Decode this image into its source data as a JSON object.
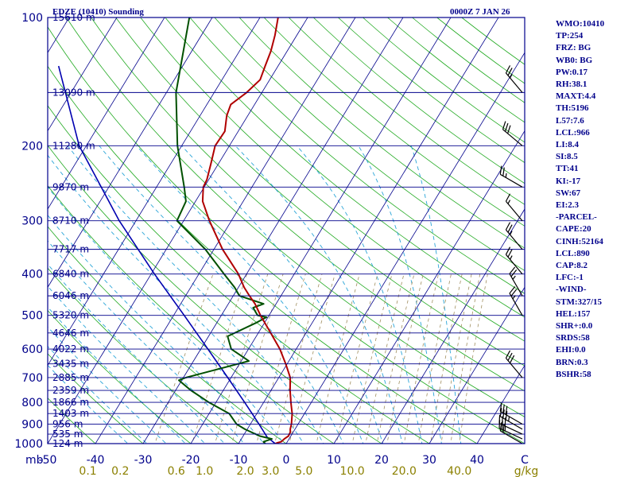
{
  "header": {
    "title_left": "EDZE (10410) Sounding",
    "title_right": "0000Z  7 JAN 26"
  },
  "indices": [
    "WMO:10410",
    "TP:254",
    "FRZ: BG",
    "WB0: BG",
    "PW:0.17",
    "RH:38.1",
    "MAXT:4.4",
    "TH:5196",
    "L57:7.6",
    "LCL:966",
    "LI:8.4",
    "SI:8.5",
    "TT:41",
    "KI:-17",
    "SW:67",
    "EI:2.3",
    "-PARCEL-",
    "CAPE:20",
    "CINH:52164",
    "LCL:890",
    "CAP:8.2",
    "LFC:-1",
    "-WIND-",
    "STM:327/15",
    "HEL:157",
    "SHR+:0.0",
    "SRDS:58",
    "EHI:0.0",
    "BRN:0.3",
    "BSHR:58"
  ],
  "colors": {
    "frame": "#00008b",
    "isobar": "#00008b",
    "isotherm": "#00008b",
    "dry_adiabat": "#22aa22",
    "moist_adiabat": "#2aa5d8",
    "mixing_ratio": "#a08f60",
    "temperature": "#b00000",
    "dewpoint": "#005000",
    "parcel": "#0000b0",
    "wind": "#000000",
    "mixing_label": "#8b8000"
  },
  "chart_data": {
    "type": "skew-t log-p sounding",
    "title": "EDZE (10410) Sounding",
    "valid_time": "0000Z  7 JAN 26",
    "pressure_axis_label": "mb",
    "pressure_range_hpa": [
      100,
      1000
    ],
    "temperature_range_c": [
      -50,
      50
    ],
    "pressure_levels": [
      {
        "p": 100,
        "label": "100",
        "height_label": "15610 m"
      },
      {
        "p": 150,
        "label": "",
        "height_label": "13090 m"
      },
      {
        "p": 200,
        "label": "200",
        "height_label": "11280 m"
      },
      {
        "p": 250,
        "label": "",
        "height_label": "9870 m"
      },
      {
        "p": 300,
        "label": "300",
        "height_label": "8710 m"
      },
      {
        "p": 350,
        "label": "",
        "height_label": "7717 m"
      },
      {
        "p": 400,
        "label": "400",
        "height_label": "6840 m"
      },
      {
        "p": 450,
        "label": "",
        "height_label": "6046 m"
      },
      {
        "p": 500,
        "label": "500",
        "height_label": "5320 m"
      },
      {
        "p": 550,
        "label": "",
        "height_label": "4646 m"
      },
      {
        "p": 600,
        "label": "600",
        "height_label": "4022 m"
      },
      {
        "p": 650,
        "label": "",
        "height_label": "3435 m"
      },
      {
        "p": 700,
        "label": "700",
        "height_label": "2885 m"
      },
      {
        "p": 750,
        "label": "",
        "height_label": "2359 m"
      },
      {
        "p": 800,
        "label": "800",
        "height_label": "1866 m"
      },
      {
        "p": 850,
        "label": "",
        "height_label": "1403 m"
      },
      {
        "p": 900,
        "label": "900",
        "height_label": "956 m"
      },
      {
        "p": 950,
        "label": "",
        "height_label": "535 m"
      },
      {
        "p": 1000,
        "label": "1000",
        "height_label": "124 m"
      }
    ],
    "temperature_ticks": [
      {
        "t": -50,
        "label": "-50"
      },
      {
        "t": -40,
        "label": "-40"
      },
      {
        "t": -30,
        "label": "-30"
      },
      {
        "t": -20,
        "label": "-20"
      },
      {
        "t": -10,
        "label": "-10"
      },
      {
        "t": 0,
        "label": "0"
      },
      {
        "t": 10,
        "label": "10"
      },
      {
        "t": 20,
        "label": "20"
      },
      {
        "t": 30,
        "label": "30"
      },
      {
        "t": 40,
        "label": "40"
      },
      {
        "t": 50,
        "label": "C"
      }
    ],
    "mixing_ratio_ticks": [
      {
        "w": 0.1,
        "label": "0.1"
      },
      {
        "w": 0.2,
        "label": "0.2"
      },
      {
        "w": 0.6,
        "label": "0.6"
      },
      {
        "w": 1.0,
        "label": "1.0"
      },
      {
        "w": 2.0,
        "label": "2.0"
      },
      {
        "w": 3.0,
        "label": "3.0"
      },
      {
        "w": 5.0,
        "label": "5.0"
      },
      {
        "w": 10.0,
        "label": "10.0"
      },
      {
        "w": 20.0,
        "label": "20.0"
      },
      {
        "w": 40.0,
        "label": "40.0"
      }
    ],
    "mixing_ratio_unit": "g/kg",
    "temperature_profile": [
      {
        "p": 1000,
        "t": -2.3
      },
      {
        "p": 995,
        "t": -1.9
      },
      {
        "p": 990,
        "t": -1.3
      },
      {
        "p": 975,
        "t": -1.0
      },
      {
        "p": 960,
        "t": -0.5
      },
      {
        "p": 940,
        "t": -0.6
      },
      {
        "p": 925,
        "t": -1.0
      },
      {
        "p": 900,
        "t": -1.4
      },
      {
        "p": 850,
        "t": -2.6
      },
      {
        "p": 800,
        "t": -4.3
      },
      {
        "p": 750,
        "t": -6.0
      },
      {
        "p": 700,
        "t": -7.6
      },
      {
        "p": 650,
        "t": -10.3
      },
      {
        "p": 600,
        "t": -13.4
      },
      {
        "p": 550,
        "t": -17.4
      },
      {
        "p": 500,
        "t": -21.8
      },
      {
        "p": 470,
        "t": -24.4
      },
      {
        "p": 450,
        "t": -26.6
      },
      {
        "p": 430,
        "t": -28.8
      },
      {
        "p": 400,
        "t": -31.7
      },
      {
        "p": 350,
        "t": -38.2
      },
      {
        "p": 300,
        "t": -44.6
      },
      {
        "p": 270,
        "t": -48.5
      },
      {
        "p": 250,
        "t": -50.2
      },
      {
        "p": 240,
        "t": -50.4
      },
      {
        "p": 220,
        "t": -51.6
      },
      {
        "p": 200,
        "t": -53.0
      },
      {
        "p": 185,
        "t": -52.8
      },
      {
        "p": 170,
        "t": -54.4
      },
      {
        "p": 160,
        "t": -55.0
      },
      {
        "p": 150,
        "t": -53.2
      },
      {
        "p": 140,
        "t": -52.0
      },
      {
        "p": 130,
        "t": -52.7
      },
      {
        "p": 120,
        "t": -53.4
      },
      {
        "p": 110,
        "t": -54.6
      },
      {
        "p": 100,
        "t": -56.2
      }
    ],
    "dewpoint_profile": [
      {
        "p": 1000,
        "t": -4.4
      },
      {
        "p": 990,
        "t": -5.0
      },
      {
        "p": 975,
        "t": -3.6
      },
      {
        "p": 960,
        "t": -6.5
      },
      {
        "p": 925,
        "t": -10.5
      },
      {
        "p": 900,
        "t": -12.9
      },
      {
        "p": 850,
        "t": -15.8
      },
      {
        "p": 800,
        "t": -21.5
      },
      {
        "p": 750,
        "t": -26.8
      },
      {
        "p": 710,
        "t": -30.6
      },
      {
        "p": 700,
        "t": -29.5
      },
      {
        "p": 640,
        "t": -18.4
      },
      {
        "p": 600,
        "t": -23.6
      },
      {
        "p": 560,
        "t": -26.0
      },
      {
        "p": 520,
        "t": -21.7
      },
      {
        "p": 505,
        "t": -20.3
      },
      {
        "p": 500,
        "t": -22.4
      },
      {
        "p": 480,
        "t": -24.3
      },
      {
        "p": 470,
        "t": -22.6
      },
      {
        "p": 450,
        "t": -28.7
      },
      {
        "p": 430,
        "t": -30.8
      },
      {
        "p": 400,
        "t": -34.7
      },
      {
        "p": 350,
        "t": -41.8
      },
      {
        "p": 300,
        "t": -51.4
      },
      {
        "p": 270,
        "t": -52.0
      },
      {
        "p": 250,
        "t": -54.2
      },
      {
        "p": 200,
        "t": -60.9
      },
      {
        "p": 150,
        "t": -68.0
      },
      {
        "p": 100,
        "t": -74.8
      }
    ],
    "parcel_profile": [
      {
        "p": 1000,
        "t": -2.3
      },
      {
        "p": 966,
        "t": -4.8
      },
      {
        "p": 900,
        "t": -8.2
      },
      {
        "p": 850,
        "t": -11.0
      },
      {
        "p": 800,
        "t": -14.0
      },
      {
        "p": 700,
        "t": -20.7
      },
      {
        "p": 600,
        "t": -28.5
      },
      {
        "p": 500,
        "t": -37.8
      },
      {
        "p": 400,
        "t": -49.3
      },
      {
        "p": 300,
        "t": -63.5
      },
      {
        "p": 200,
        "t": -81.5
      },
      {
        "p": 130,
        "t": -96.0
      }
    ],
    "wind_barbs": [
      {
        "p": 1000,
        "dir": 300,
        "kt": 20
      },
      {
        "p": 975,
        "dir": 295,
        "kt": 25
      },
      {
        "p": 950,
        "dir": 295,
        "kt": 30
      },
      {
        "p": 925,
        "dir": 300,
        "kt": 35
      },
      {
        "p": 900,
        "dir": 300,
        "kt": 30
      },
      {
        "p": 700,
        "dir": 320,
        "kt": 30
      },
      {
        "p": 500,
        "dir": 330,
        "kt": 25
      },
      {
        "p": 450,
        "dir": 330,
        "kt": 25
      },
      {
        "p": 400,
        "dir": 320,
        "kt": 25
      },
      {
        "p": 350,
        "dir": 320,
        "kt": 25
      },
      {
        "p": 300,
        "dir": 320,
        "kt": 15
      },
      {
        "p": 250,
        "dir": 300,
        "kt": 25
      },
      {
        "p": 200,
        "dir": 310,
        "kt": 30
      },
      {
        "p": 150,
        "dir": 320,
        "kt": 25
      }
    ]
  }
}
